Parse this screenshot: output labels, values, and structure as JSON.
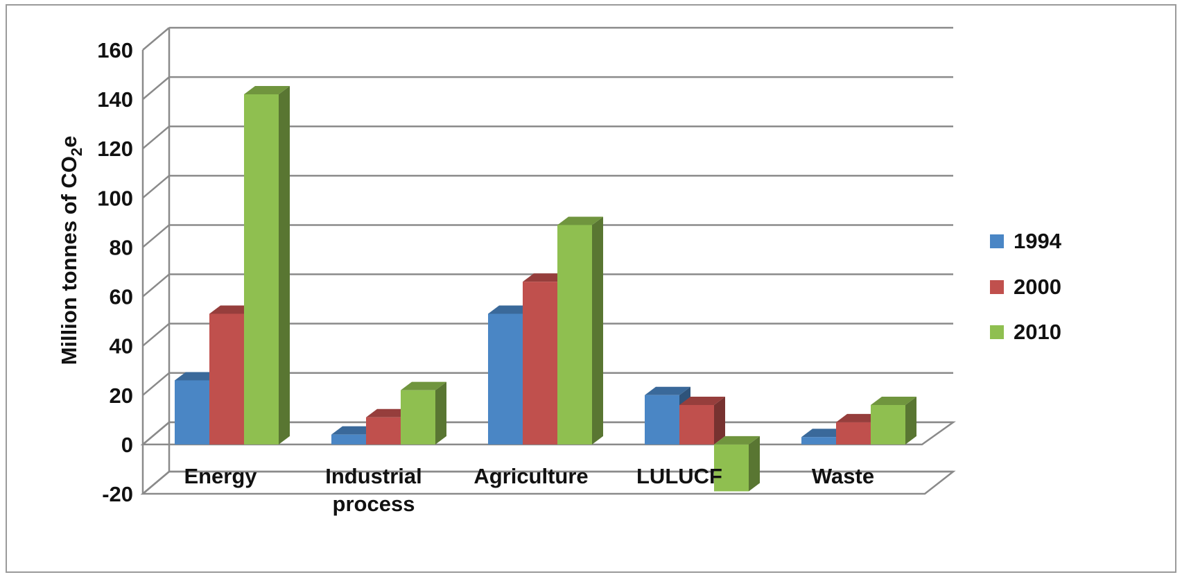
{
  "chart_data": {
    "type": "bar",
    "style": "3d-clustered-column",
    "categories": [
      "Energy",
      "Industrial process",
      "Agriculture",
      "LULUCF",
      "Waste"
    ],
    "category_label_lines": [
      [
        "Energy"
      ],
      [
        "Industrial",
        "process"
      ],
      [
        "Agriculture"
      ],
      [
        "LULUCF"
      ],
      [
        "Waste"
      ]
    ],
    "series": [
      {
        "name": "1994",
        "color": "#4a86c5",
        "values": [
          26,
          4,
          53,
          20,
          3
        ]
      },
      {
        "name": "2000",
        "color": "#c0504d",
        "values": [
          53,
          11,
          66,
          16,
          9
        ]
      },
      {
        "name": "2010",
        "color": "#8fbf50",
        "values": [
          142,
          22,
          89,
          -19,
          16
        ]
      }
    ],
    "ylabel": {
      "main": "Million tonnes of CO",
      "sub": "2",
      "tail": "e"
    },
    "ylim": [
      -20,
      160
    ],
    "ytick_step": 20,
    "yticks": [
      "-20",
      "0",
      "20",
      "40",
      "60",
      "80",
      "100",
      "120",
      "140",
      "160"
    ],
    "grid": true,
    "legend_position": "right"
  }
}
